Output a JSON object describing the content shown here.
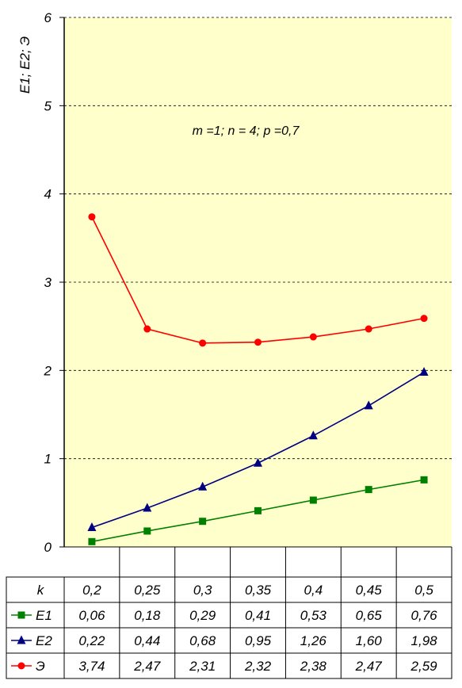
{
  "colors": {
    "plot_bg": "#ffffcc",
    "E1": "#008000",
    "E2": "#000080",
    "Э": "#ff0000"
  },
  "chart_data": {
    "type": "line",
    "ylabel": "E1; E2; Э",
    "annotation": "m =1; n = 4; p =0,7",
    "ylim": [
      0,
      6
    ],
    "yticks": [
      "0",
      "1",
      "2",
      "3",
      "4",
      "5",
      "6"
    ],
    "grid": "horizontal dashed",
    "x_label": "k",
    "x": [
      "0,2",
      "0,25",
      "0,3",
      "0,35",
      "0,4",
      "0,45",
      "0,5"
    ],
    "series": [
      {
        "name": "E1",
        "marker": "square",
        "values": [
          0.06,
          0.18,
          0.29,
          0.41,
          0.53,
          0.65,
          0.76
        ],
        "labels": [
          "0,06",
          "0,18",
          "0,29",
          "0,41",
          "0,53",
          "0,65",
          "0,76"
        ]
      },
      {
        "name": "E2",
        "marker": "triangle",
        "values": [
          0.22,
          0.44,
          0.68,
          0.95,
          1.26,
          1.6,
          1.98
        ],
        "labels": [
          "0,22",
          "0,44",
          "0,68",
          "0,95",
          "1,26",
          "1,60",
          "1,98"
        ]
      },
      {
        "name": "Э",
        "marker": "circle",
        "values": [
          3.74,
          2.47,
          2.31,
          2.32,
          2.38,
          2.47,
          2.59
        ],
        "labels": [
          "3,74",
          "2,47",
          "2,31",
          "2,32",
          "2,38",
          "2,47",
          "2,59"
        ]
      }
    ]
  }
}
